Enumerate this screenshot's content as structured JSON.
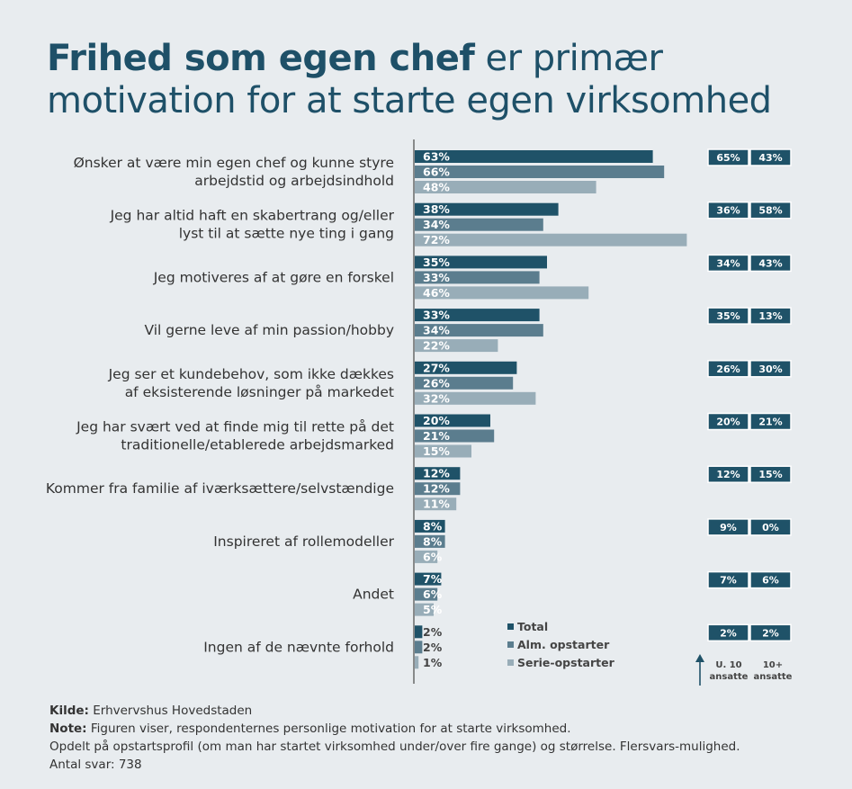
{
  "title": {
    "bold": "Frihed som egen chef",
    "rest_line1": " er primær",
    "line2": "motivation for at starte egen virksomhed"
  },
  "colors": {
    "title": "#1e5068",
    "total": "#1f5268",
    "alm": "#5b7d8e",
    "serie": "#98adb8",
    "box": "#1f5268",
    "background": "#e8ecef"
  },
  "chart_data": {
    "type": "bar",
    "orientation": "horizontal",
    "title": "Frihed som egen chef er primær motivation for at starte egen virksomhed",
    "unit": "%",
    "categories": [
      [
        "Ønsker at være min egen chef og kunne styre",
        "arbejdstid og arbejdsindhold"
      ],
      [
        "Jeg har altid haft en skabertrang og/eller",
        "lyst til at sætte nye ting i gang"
      ],
      [
        "Jeg motiveres af at gøre en forskel"
      ],
      [
        "Vil gerne leve af min passion/hobby"
      ],
      [
        "Jeg ser et kundebehov, som ikke dækkes",
        "af eksisterende løsninger på markedet"
      ],
      [
        "Jeg har svært ved at finde mig til rette på det",
        "traditionelle/etablerede arbejdsmarked"
      ],
      [
        "Kommer fra familie af iværksættere/selvstændige"
      ],
      [
        "Inspireret af rollemodeller"
      ],
      [
        "Andet"
      ],
      [
        "Ingen af de nævnte forhold"
      ]
    ],
    "series": [
      {
        "name": "Total",
        "values": [
          63,
          38,
          35,
          33,
          27,
          20,
          12,
          8,
          7,
          2
        ]
      },
      {
        "name": "Alm. opstarter",
        "values": [
          66,
          34,
          33,
          34,
          26,
          21,
          12,
          8,
          6,
          2
        ]
      },
      {
        "name": "Serie-opstarter",
        "values": [
          48,
          72,
          46,
          22,
          32,
          15,
          11,
          6,
          5,
          1
        ]
      }
    ],
    "size_series": [
      {
        "name": "U. 10 ansatte",
        "values": [
          65,
          36,
          34,
          35,
          26,
          20,
          12,
          9,
          7,
          2
        ]
      },
      {
        "name": "10+ ansatte",
        "values": [
          43,
          58,
          43,
          13,
          30,
          21,
          15,
          0,
          6,
          2
        ]
      }
    ],
    "xlim": [
      0,
      100
    ],
    "grid": false,
    "legend": "bottom-center"
  },
  "legend": {
    "items": [
      "Total",
      "Alm. opstarter",
      "Serie-opstarter"
    ]
  },
  "size_columns": {
    "col1": [
      "U. 10",
      "ansatte"
    ],
    "col2": [
      "10+",
      "ansatte"
    ],
    "arrow_icon": "arrow-up-icon"
  },
  "footer": {
    "source_label": "Kilde:",
    "source_text": " Erhvervshus Hovedstaden",
    "note_label": "Note:",
    "note_text": " Figuren viser, respondenternes personlige motivation for at starte virksomhed.",
    "line3": "Opdelt på opstartsprofil (om man har startet virksomhed under/over fire gange) og størrelse. Flersvars-mulighed.",
    "line4": "Antal svar: 738"
  }
}
